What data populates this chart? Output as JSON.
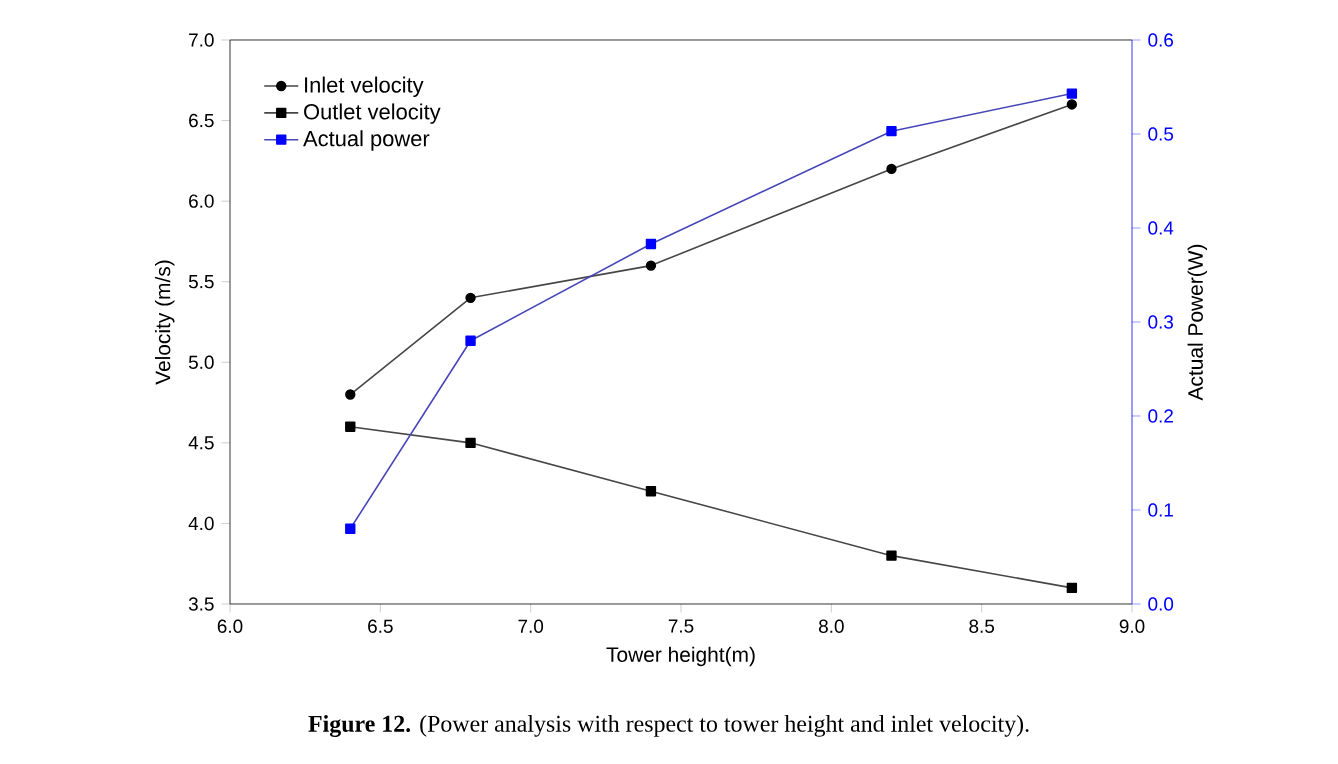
{
  "chart_data": {
    "type": "line",
    "x": [
      6.4,
      6.8,
      7.4,
      8.2,
      8.8
    ],
    "series": [
      {
        "name": "Inlet velocity",
        "color": "#000000",
        "marker": "circle",
        "values": [
          4.8,
          5.4,
          5.6,
          6.2,
          6.6
        ]
      },
      {
        "name": "Outlet velocity",
        "color": "#000000",
        "marker": "square",
        "values": [
          4.6,
          4.5,
          4.2,
          3.8,
          3.6
        ]
      },
      {
        "name": "Actual power",
        "color": "#0000ff",
        "marker": "square",
        "axis": "y2",
        "values": [
          0.08,
          0.28,
          0.383,
          0.503,
          0.543
        ]
      }
    ],
    "xlabel": "Tower height(m)",
    "ylabel": "Velocity (m/s)",
    "y2label": "Actual Power(W)",
    "xlim": [
      6.0,
      9.0
    ],
    "xticks": [
      {
        "value": 6,
        "label": "6.0"
      },
      6.5,
      {
        "value": 7,
        "label": "7.0"
      },
      7.5,
      {
        "value": 8,
        "label": "8.0"
      },
      8.5,
      {
        "value": 9,
        "label": "9.0"
      }
    ],
    "ylim": [
      3.5,
      7.0
    ],
    "yticks": [
      3.5,
      {
        "value": 4,
        "label": "4.0"
      },
      4.5,
      {
        "value": 5,
        "label": "5.0"
      },
      5.5,
      {
        "value": 6,
        "label": "6.0"
      },
      6.5,
      {
        "value": 7,
        "label": "7.0"
      }
    ],
    "y2lim": [
      0.0,
      0.6
    ],
    "y2ticks": [
      {
        "value": 0,
        "label": "0.0"
      },
      0.1,
      0.2,
      0.3,
      0.4,
      0.5,
      0.6
    ],
    "legend": "top left",
    "grid": false,
    "annotations": [
      "**Figure 12.** (Power analysis with respect to tower height and inlet velocity)."
    ]
  }
}
